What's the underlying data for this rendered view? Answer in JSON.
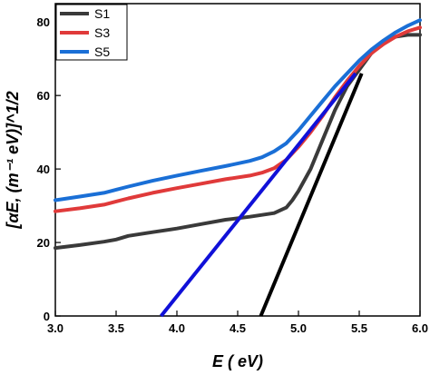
{
  "chart_data": {
    "type": "line",
    "xlabel": "E ( eV)",
    "ylabel": "[αE, (m⁻¹ eV)]^1/2",
    "xlim": [
      3.0,
      6.0
    ],
    "ylim": [
      0,
      85
    ],
    "xticks": [
      3.0,
      3.5,
      4.0,
      4.5,
      5.0,
      5.5,
      6.0
    ],
    "xtick_labels": [
      "3.0",
      "3.5",
      "4.0",
      "4.5",
      "5.0",
      "5.5",
      "6.0"
    ],
    "yticks": [
      0,
      20,
      40,
      60,
      80
    ],
    "ytick_labels": [
      "0",
      "20",
      "40",
      "60",
      "80"
    ],
    "legend_position": "top-left",
    "series": [
      {
        "name": "S1",
        "color": "#3a3a3a",
        "x": [
          3.0,
          3.2,
          3.4,
          3.5,
          3.6,
          3.8,
          4.0,
          4.2,
          4.4,
          4.6,
          4.8,
          4.9,
          4.95,
          5.0,
          5.1,
          5.2,
          5.3,
          5.4,
          5.5,
          5.6,
          5.7,
          5.8,
          5.9,
          6.0
        ],
        "y": [
          18.5,
          19.3,
          20.2,
          20.8,
          21.8,
          22.8,
          23.8,
          25.0,
          26.2,
          27.0,
          28.0,
          29.5,
          31.5,
          34.0,
          40.0,
          48.0,
          56.0,
          62.5,
          67.0,
          71.5,
          74.5,
          76.0,
          76.5,
          76.5
        ]
      },
      {
        "name": "S3",
        "color": "#e03a3a",
        "x": [
          3.0,
          3.2,
          3.4,
          3.6,
          3.8,
          4.0,
          4.2,
          4.4,
          4.6,
          4.7,
          4.8,
          4.9,
          5.0,
          5.1,
          5.2,
          5.3,
          5.4,
          5.5,
          5.6,
          5.7,
          5.8,
          5.9,
          6.0
        ],
        "y": [
          28.5,
          29.3,
          30.3,
          32.0,
          33.5,
          34.8,
          36.0,
          37.2,
          38.2,
          39.0,
          40.2,
          42.5,
          46.0,
          50.0,
          54.5,
          59.5,
          64.0,
          68.0,
          71.5,
          74.0,
          76.0,
          77.5,
          78.5
        ]
      },
      {
        "name": "S5",
        "color": "#1a6fd6",
        "x": [
          3.0,
          3.2,
          3.4,
          3.6,
          3.8,
          4.0,
          4.2,
          4.4,
          4.6,
          4.7,
          4.8,
          4.9,
          5.0,
          5.1,
          5.2,
          5.3,
          5.4,
          5.5,
          5.6,
          5.7,
          5.8,
          5.9,
          6.0
        ],
        "y": [
          31.5,
          32.5,
          33.5,
          35.2,
          36.8,
          38.2,
          39.5,
          40.8,
          42.2,
          43.2,
          44.8,
          47.0,
          50.5,
          54.5,
          58.5,
          62.5,
          66.0,
          69.5,
          72.5,
          75.0,
          77.2,
          79.0,
          80.5
        ]
      }
    ],
    "fit_lines": [
      {
        "color": "#000000",
        "x": [
          4.69,
          5.52
        ],
        "y": [
          0,
          66.0
        ]
      },
      {
        "color": "#1010d8",
        "x": [
          3.87,
          5.47
        ],
        "y": [
          0,
          66.0
        ]
      }
    ]
  }
}
